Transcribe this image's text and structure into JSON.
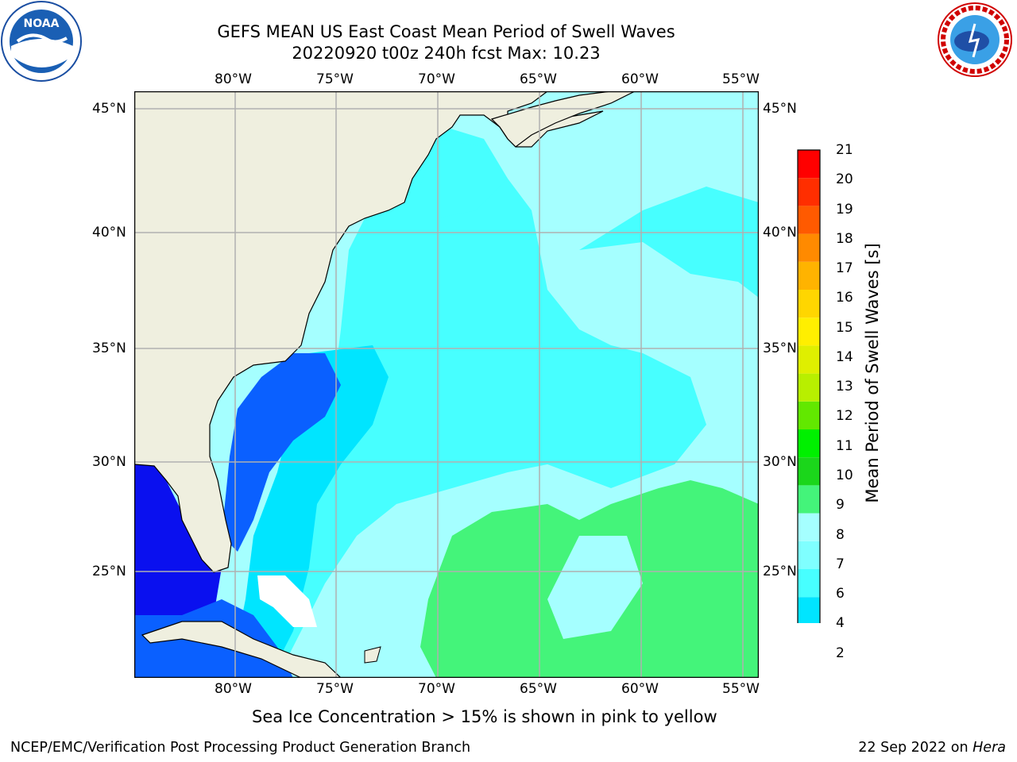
{
  "title": {
    "line1": "GEFS MEAN US East Coast Mean Period of Swell Waves",
    "line2": "20220920 t00z 240h fcst   Max: 10.23"
  },
  "map": {
    "lon_labels": [
      "80°W",
      "75°W",
      "70°W",
      "65°W",
      "60°W",
      "55°W"
    ],
    "lat_labels": [
      "45°N",
      "40°N",
      "35°N",
      "30°N",
      "25°N"
    ],
    "land_color": "#efefdf",
    "grid_color": "#b0b0b0"
  },
  "colorbar": {
    "label": "Mean Period of Swell Waves [s]",
    "ticks": [
      "2",
      "4",
      "6",
      "7",
      "8",
      "9",
      "10",
      "11",
      "12",
      "13",
      "14",
      "15",
      "16",
      "17",
      "18",
      "19",
      "20",
      "21"
    ],
    "colors": [
      "#0a60ff",
      "#00e5ff",
      "#47ffff",
      "#7fffff",
      "#a5ffff",
      "#44f47a",
      "#1bd61b",
      "#00f000",
      "#62e800",
      "#b8ef00",
      "#dfef00",
      "#ffef00",
      "#ffd600",
      "#ffb300",
      "#ff8a00",
      "#ff5a00",
      "#ff2e00",
      "#ff0000"
    ],
    "extend_color": "#0a10ef"
  },
  "note": "Sea Ice Concentration > 15% is shown in pink to yellow",
  "footer": {
    "left": "NCEP/EMC/Verification Post Processing Product Generation Branch",
    "right_date": "22 Sep 2022 on",
    "right_host": "Hera"
  },
  "logos": {
    "left_text": "NOAA",
    "left_ring": "NATIONAL OCEANIC AND ATMOSPHERIC ADMINISTRATION · U.S. DEPARTMENT OF COMMERCE",
    "right_ring": "NATIONAL WEATHER SERVICE"
  }
}
